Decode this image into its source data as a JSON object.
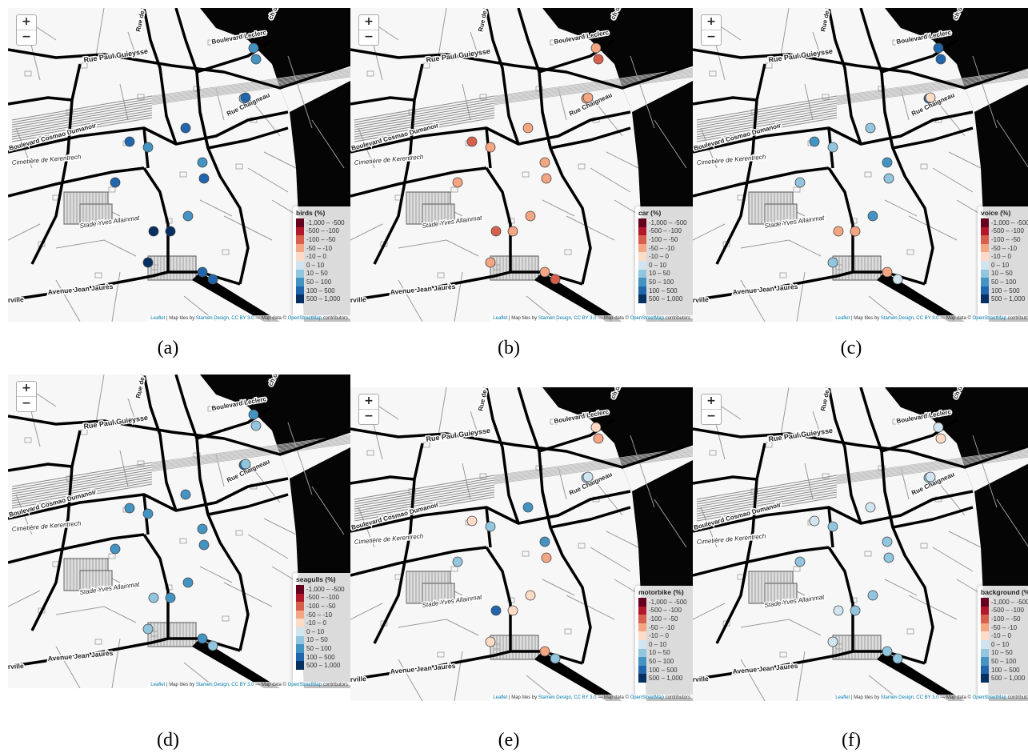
{
  "map": {
    "zoom_in_label": "+",
    "zoom_out_label": "−",
    "attribution": {
      "leaflet": "Leaflet",
      "sep1": " | Map tiles by ",
      "stamen": "Stamen Design",
      "sep2": ", ",
      "license": "CC BY 3.0",
      "sep3": " — Map data © ",
      "osm": "OpenStreetMap",
      "tail": " contributors"
    },
    "street_labels": {
      "rue_paul_guieysse": "Rue Paul Guieysse",
      "rue_de_verdun": "Rue de Verdun",
      "boulevard_leclerc": "Boulevard Leclerc",
      "rue_chaigneau": "Rue Chaigneau",
      "boulevard_cosmao": "Boulevard Cosmao Dumanoir",
      "cimetiere": "Cimetière de Kerentrech",
      "stade": "Stade Yves Allainmat",
      "avenue_jean_jaures": "Avenue Jean Jaurès",
      "rville": "rville",
      "ch_label": "ch du Scorff"
    },
    "legend_ranges": [
      "-1,000 – -500",
      "-500 – -100",
      "-100 – -50",
      "-50 – -10",
      "-10 – 0",
      "0 – 10",
      "10 – 50",
      "50 – 100",
      "100 – 500",
      "500 – 1,000"
    ],
    "legend_colors": [
      "#67001f",
      "#b2182b",
      "#d6604d",
      "#f4a582",
      "#fddbc7",
      "#d1e5f0",
      "#92c5de",
      "#4393c3",
      "#2166ac",
      "#053061"
    ]
  },
  "panels": [
    {
      "caption": "(a)",
      "legend_title": "birds (%)",
      "points": [
        7,
        7,
        6,
        8,
        8,
        7,
        7,
        8,
        8,
        7,
        9,
        9,
        9,
        8,
        8,
        8
      ]
    },
    {
      "caption": "(b)",
      "legend_title": "car (%)",
      "points": [
        3,
        2,
        3,
        3,
        2,
        3,
        3,
        3,
        3,
        3,
        2,
        3,
        3,
        3,
        2,
        3
      ]
    },
    {
      "caption": "(c)",
      "legend_title": "voice (%)",
      "points": [
        8,
        8,
        8,
        6,
        7,
        6,
        7,
        6,
        6,
        7,
        3,
        3,
        6,
        3,
        5,
        4
      ]
    },
    {
      "caption": "(d)",
      "legend_title": "seagulls (%)",
      "points": [
        7,
        6,
        8,
        7,
        7,
        7,
        7,
        7,
        7,
        7,
        6,
        7,
        6,
        7,
        6,
        6
      ]
    },
    {
      "caption": "(e)",
      "legend_title": "motorbike (%)",
      "points": [
        4,
        3,
        6,
        7,
        4,
        6,
        7,
        3,
        6,
        4,
        8,
        4,
        4,
        3,
        6,
        5
      ]
    },
    {
      "caption": "(f)",
      "legend_title": "background (%)",
      "points": [
        5,
        4,
        6,
        5,
        5,
        6,
        6,
        6,
        6,
        6,
        5,
        6,
        5,
        6,
        6,
        5
      ]
    }
  ]
}
